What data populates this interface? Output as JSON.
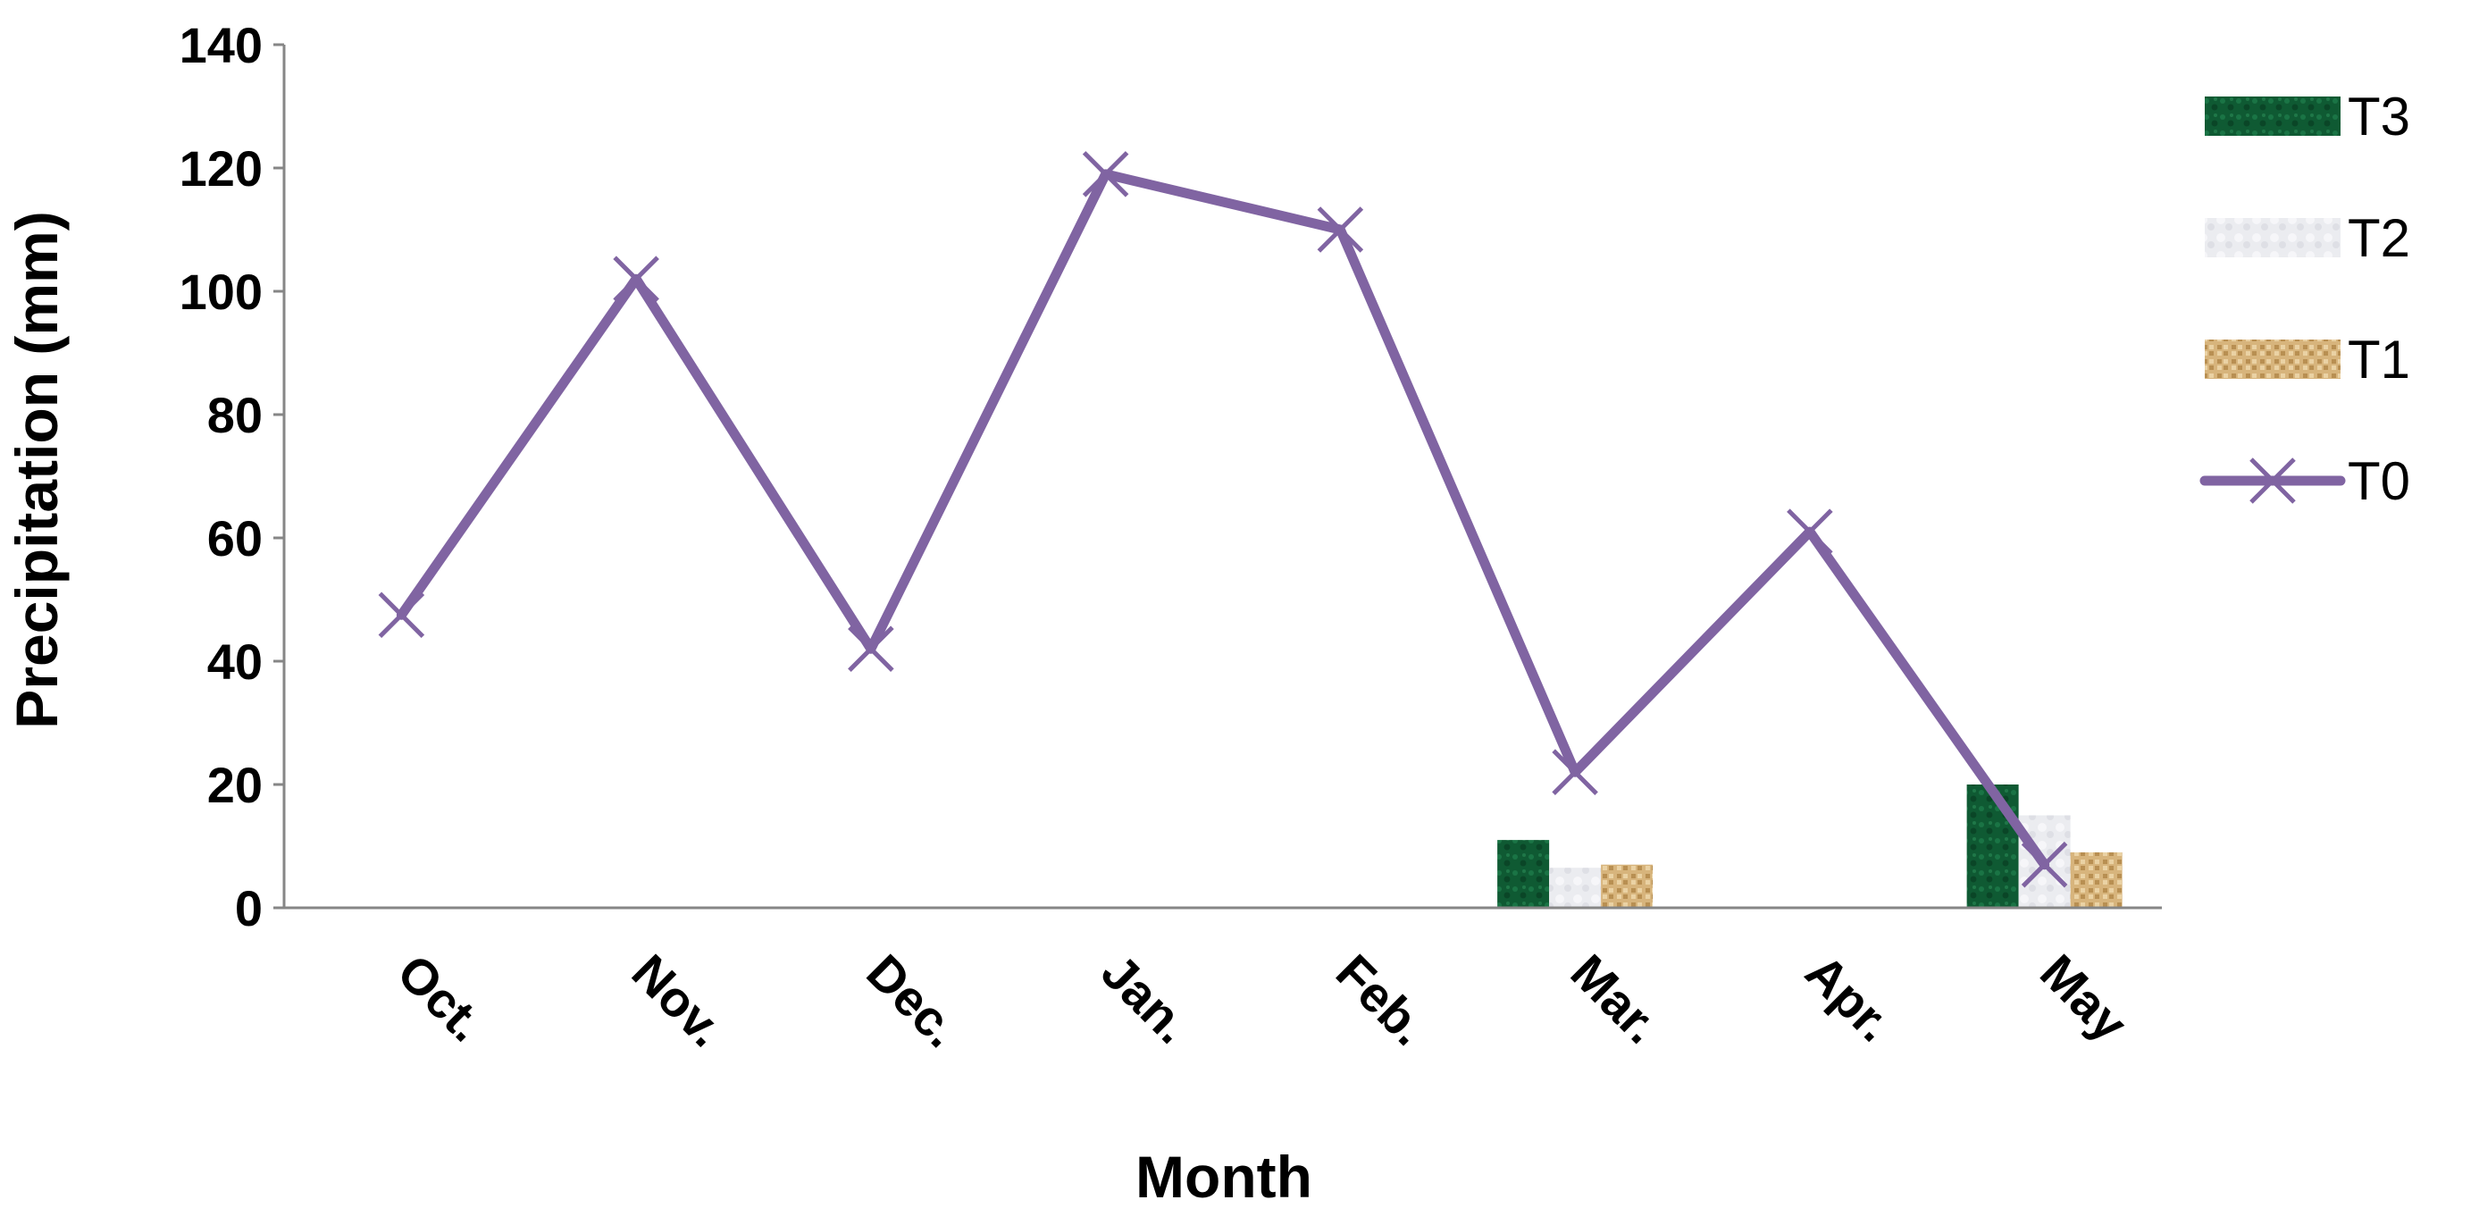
{
  "chart_data": {
    "type": "bar",
    "title": "",
    "xlabel": "Month",
    "ylabel": "Precipitation (mm)",
    "ylim": [
      0,
      140
    ],
    "yticks": [
      0,
      20,
      40,
      60,
      80,
      100,
      120,
      140
    ],
    "grid": false,
    "legend_position": "right",
    "categories": [
      "Oct.",
      "Nov.",
      "Dec.",
      "Jan.",
      "Feb.",
      "Mar.",
      "Apr.",
      "May"
    ],
    "bar_series": [
      {
        "name": "T3",
        "color": "#0f5a33",
        "values": [
          0,
          0,
          0,
          0,
          0,
          11,
          0,
          20
        ]
      },
      {
        "name": "T2",
        "color": "#e6e7ec",
        "values": [
          0,
          0,
          0,
          0,
          0,
          6.5,
          0,
          15
        ]
      },
      {
        "name": "T1",
        "color": "#d7b47c",
        "values": [
          0,
          0,
          0,
          0,
          0,
          7,
          0,
          9
        ]
      }
    ],
    "line_series": [
      {
        "name": "T0",
        "color": "#8064a2",
        "marker": "x",
        "values": [
          47.5,
          102,
          42,
          119,
          110,
          22,
          61,
          7
        ]
      }
    ],
    "legend_order": [
      "T3",
      "T2",
      "T1",
      "T0"
    ]
  }
}
